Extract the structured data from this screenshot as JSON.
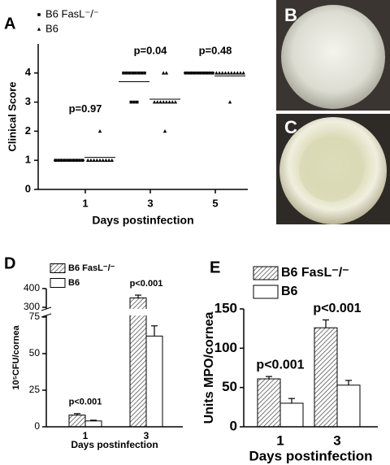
{
  "chart_data": [
    {
      "type": "scatter",
      "panel_label": "A",
      "y_label": "Clinical Score",
      "x_label": "Days postinfection",
      "categories": [
        "1",
        "3",
        "5"
      ],
      "ylim": [
        0,
        5
      ],
      "yticks": [
        0,
        1,
        2,
        3,
        4
      ],
      "series": [
        {
          "name": "B6 FasL⁻/⁻",
          "marker": "square",
          "color": "#000000",
          "values": [
            [
              1,
              1,
              1,
              1,
              1,
              1,
              1,
              1,
              1,
              1
            ],
            [
              4,
              4,
              4,
              4,
              4,
              4,
              4,
              4,
              3,
              3,
              3
            ],
            [
              4,
              4,
              4,
              4,
              4,
              4,
              4,
              4,
              4,
              4
            ]
          ],
          "means": [
            1.0,
            3.7,
            4.0
          ]
        },
        {
          "name": "B6",
          "marker": "triangle",
          "color": "#000000",
          "values": [
            [
              1,
              1,
              1,
              1,
              1,
              1,
              1,
              1,
              1,
              2
            ],
            [
              4,
              4,
              3,
              3,
              3,
              3,
              3,
              3,
              3,
              3,
              2
            ],
            [
              4,
              4,
              4,
              4,
              4,
              4,
              4,
              4,
              4,
              4,
              3
            ]
          ],
          "means": [
            1.1,
            3.1,
            3.9
          ]
        }
      ],
      "annotations": [
        "p=0.97",
        "p=0.04",
        "p=0.48"
      ]
    },
    {
      "type": "bar",
      "panel_label": "D",
      "y_label": "10⁵CFU/cornea",
      "x_label": "Days postinfection",
      "categories": [
        "1",
        "3"
      ],
      "ylim": [
        0,
        400
      ],
      "axis_break": [
        75,
        300
      ],
      "yticks": [
        0,
        25,
        50,
        75,
        300,
        400
      ],
      "series": [
        {
          "name": "B6 FasL⁻/⁻",
          "pattern": "hatched",
          "color": "#ffffff",
          "values": [
            8,
            350
          ],
          "errors": [
            1,
            15
          ]
        },
        {
          "name": "B6",
          "pattern": "solid",
          "color": "#ffffff",
          "values": [
            4,
            62
          ],
          "errors": [
            0.5,
            7
          ]
        }
      ],
      "annotations": [
        "p<0.001",
        "p<0.001"
      ]
    },
    {
      "type": "bar",
      "panel_label": "E",
      "y_label": "Units MPO/cornea",
      "x_label": "Days postinfection",
      "categories": [
        "1",
        "3"
      ],
      "ylim": [
        0,
        150
      ],
      "yticks": [
        0,
        50,
        100,
        150
      ],
      "series": [
        {
          "name": "B6 FasL⁻/⁻",
          "pattern": "hatched",
          "color": "#ffffff",
          "values": [
            61,
            126
          ],
          "errors": [
            3,
            10
          ]
        },
        {
          "name": "B6",
          "pattern": "solid",
          "color": "#ffffff",
          "values": [
            30,
            53
          ],
          "errors": [
            6,
            6
          ]
        }
      ],
      "annotations": [
        "p<0.001",
        "p<0.001"
      ]
    }
  ],
  "images": [
    {
      "panel_label": "B"
    },
    {
      "panel_label": "C"
    }
  ]
}
